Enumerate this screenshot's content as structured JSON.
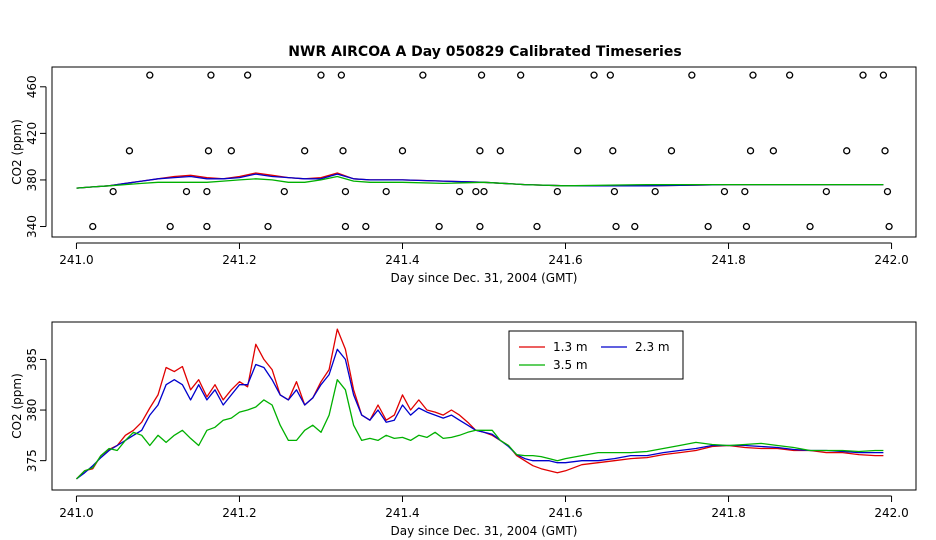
{
  "figure_title": "NWR AIRCOA A  Day 050829  Calibrated Timeseries",
  "chart_data": [
    {
      "type": "line",
      "title": "NWR AIRCOA A  Day 050829  Calibrated Timeseries",
      "xlabel": "Day since Dec. 31, 2004 (GMT)",
      "ylabel": "CO2 (ppm)",
      "xlim": [
        240.97,
        242.03
      ],
      "ylim": [
        331,
        477
      ],
      "xticks": [
        "241.0",
        "241.2",
        "241.4",
        "241.6",
        "241.8",
        "242.0"
      ],
      "xtick_values": [
        241.0,
        241.2,
        241.4,
        241.6,
        241.8,
        242.0
      ],
      "yticks": [
        "340",
        "380",
        "420",
        "460"
      ],
      "ytick_values": [
        340,
        380,
        420,
        460
      ],
      "grid": false,
      "colors": {
        "s13": "#e00000",
        "s23": "#0000cc",
        "s35": "#00b000",
        "points": "#000000"
      },
      "series": [
        {
          "key": "s13",
          "x": [
            241.0,
            241.02,
            241.04,
            241.06,
            241.08,
            241.1,
            241.12,
            241.14,
            241.16,
            241.18,
            241.2,
            241.22,
            241.24,
            241.26,
            241.28,
            241.3,
            241.32,
            241.34,
            241.36,
            241.4,
            241.45,
            241.5,
            241.55,
            241.6,
            241.7,
            241.8,
            241.9,
            241.99
          ],
          "y": [
            373,
            374,
            375,
            377,
            379,
            381,
            383,
            384,
            382,
            381,
            383,
            386,
            384,
            382,
            381,
            382,
            386,
            381,
            380,
            380,
            379,
            378,
            376,
            375,
            375,
            376,
            376,
            376
          ]
        },
        {
          "key": "s23",
          "x": [
            241.0,
            241.02,
            241.04,
            241.06,
            241.08,
            241.1,
            241.12,
            241.14,
            241.16,
            241.18,
            241.2,
            241.22,
            241.24,
            241.26,
            241.28,
            241.3,
            241.32,
            241.34,
            241.36,
            241.4,
            241.45,
            241.5,
            241.55,
            241.6,
            241.7,
            241.8,
            241.9,
            241.99
          ],
          "y": [
            373,
            374,
            375,
            377,
            379,
            381,
            382,
            383,
            381,
            381,
            382,
            385,
            383,
            382,
            381,
            381,
            385,
            381,
            380,
            380,
            379,
            378,
            376,
            375,
            375,
            376,
            376,
            376
          ]
        },
        {
          "key": "s35",
          "x": [
            241.0,
            241.02,
            241.04,
            241.06,
            241.08,
            241.1,
            241.12,
            241.14,
            241.16,
            241.18,
            241.2,
            241.22,
            241.24,
            241.26,
            241.28,
            241.3,
            241.32,
            241.34,
            241.36,
            241.4,
            241.45,
            241.5,
            241.55,
            241.6,
            241.7,
            241.8,
            241.9,
            241.99
          ],
          "y": [
            373,
            374,
            375,
            376,
            377,
            378,
            378,
            378,
            378,
            379,
            380,
            381,
            380,
            378,
            378,
            380,
            383,
            379,
            378,
            378,
            377,
            378,
            376,
            375,
            376,
            376,
            376,
            376
          ]
        }
      ],
      "points": {
        "x": [
          241.02,
          241.045,
          241.065,
          241.09,
          241.115,
          241.135,
          241.16,
          241.16,
          241.162,
          241.165,
          241.19,
          241.21,
          241.235,
          241.255,
          241.28,
          241.3,
          241.325,
          241.327,
          241.33,
          241.33,
          241.355,
          241.38,
          241.4,
          241.425,
          241.445,
          241.47,
          241.49,
          241.495,
          241.495,
          241.497,
          241.5,
          241.52,
          241.545,
          241.565,
          241.59,
          241.615,
          241.635,
          241.655,
          241.658,
          241.66,
          241.662,
          241.685,
          241.71,
          241.73,
          241.755,
          241.775,
          241.795,
          241.82,
          241.822,
          241.827,
          241.83,
          241.855,
          241.875,
          241.9,
          241.92,
          241.945,
          241.965,
          241.99,
          241.992,
          241.995,
          241.997
        ],
        "y": [
          340,
          370,
          405,
          470,
          340,
          370,
          340,
          370,
          405,
          470,
          405,
          470,
          340,
          370,
          405,
          470,
          470,
          405,
          370,
          340,
          340,
          370,
          405,
          470,
          340,
          370,
          370,
          340,
          405,
          470,
          370,
          405,
          470,
          340,
          370,
          405,
          470,
          470,
          405,
          370,
          340,
          340,
          370,
          405,
          470,
          340,
          370,
          370,
          340,
          405,
          470,
          405,
          470,
          340,
          370,
          405,
          470,
          470,
          405,
          370,
          340
        ]
      }
    },
    {
      "type": "line",
      "title": "",
      "xlabel": "Day since Dec. 31, 2004 (GMT)",
      "ylabel": "CO2 (ppm)",
      "xlim": [
        240.97,
        242.03
      ],
      "ylim": [
        372.1,
        388.7
      ],
      "xticks": [
        "241.0",
        "241.2",
        "241.4",
        "241.6",
        "241.8",
        "242.0"
      ],
      "xtick_values": [
        241.0,
        241.2,
        241.4,
        241.6,
        241.8,
        242.0
      ],
      "yticks": [
        "375",
        "380",
        "385"
      ],
      "ytick_values": [
        375,
        380,
        385
      ],
      "grid": false,
      "legend": {
        "placement": "top-center",
        "entries": [
          {
            "key": "s13",
            "label": "1.3 m"
          },
          {
            "key": "s23",
            "label": "2.3 m"
          },
          {
            "key": "s35",
            "label": "3.5 m"
          }
        ]
      },
      "colors": {
        "s13": "#e00000",
        "s23": "#0000cc",
        "s35": "#00b000"
      },
      "series": [
        {
          "key": "s13",
          "name": "1.3 m",
          "x": [
            241.0,
            241.01,
            241.02,
            241.03,
            241.04,
            241.05,
            241.06,
            241.07,
            241.08,
            241.09,
            241.1,
            241.11,
            241.12,
            241.13,
            241.14,
            241.15,
            241.16,
            241.17,
            241.18,
            241.19,
            241.2,
            241.21,
            241.22,
            241.23,
            241.24,
            241.25,
            241.26,
            241.27,
            241.28,
            241.29,
            241.3,
            241.31,
            241.32,
            241.33,
            241.34,
            241.35,
            241.36,
            241.37,
            241.38,
            241.39,
            241.4,
            241.41,
            241.42,
            241.43,
            241.44,
            241.45,
            241.46,
            241.47,
            241.48,
            241.49,
            241.5,
            241.51,
            241.52,
            241.53,
            241.54,
            241.55,
            241.56,
            241.57,
            241.58,
            241.59,
            241.6,
            241.62,
            241.64,
            241.66,
            241.68,
            241.7,
            241.72,
            241.74,
            241.76,
            241.78,
            241.8,
            241.82,
            241.84,
            241.86,
            241.88,
            241.9,
            241.92,
            241.94,
            241.96,
            241.98,
            241.99
          ],
          "y": [
            373.2,
            374.0,
            374.2,
            375.5,
            376.1,
            376.5,
            377.5,
            378.0,
            378.8,
            380.2,
            381.5,
            384.2,
            383.8,
            384.3,
            382.0,
            383.0,
            381.3,
            382.5,
            381.0,
            382.0,
            382.8,
            382.3,
            386.5,
            385.0,
            384.0,
            381.5,
            381.0,
            382.8,
            380.5,
            381.2,
            382.8,
            384.0,
            388.0,
            386.0,
            382.0,
            379.5,
            379.0,
            380.5,
            379.0,
            379.5,
            381.5,
            380.0,
            381.0,
            380.0,
            379.8,
            379.5,
            380.0,
            379.5,
            378.8,
            378.0,
            377.8,
            377.5,
            377.0,
            376.5,
            375.5,
            375.0,
            374.5,
            374.2,
            374.0,
            373.8,
            374.0,
            374.6,
            374.8,
            375.0,
            375.2,
            375.3,
            375.6,
            375.8,
            376.0,
            376.4,
            376.5,
            376.3,
            376.2,
            376.2,
            376.0,
            376.0,
            375.8,
            375.8,
            375.6,
            375.5,
            375.5
          ]
        },
        {
          "key": "s23",
          "name": "2.3 m",
          "x": [
            241.0,
            241.01,
            241.02,
            241.03,
            241.04,
            241.05,
            241.06,
            241.07,
            241.08,
            241.09,
            241.1,
            241.11,
            241.12,
            241.13,
            241.14,
            241.15,
            241.16,
            241.17,
            241.18,
            241.19,
            241.2,
            241.21,
            241.22,
            241.23,
            241.24,
            241.25,
            241.26,
            241.27,
            241.28,
            241.29,
            241.3,
            241.31,
            241.32,
            241.33,
            241.34,
            241.35,
            241.36,
            241.37,
            241.38,
            241.39,
            241.4,
            241.41,
            241.42,
            241.43,
            241.44,
            241.45,
            241.46,
            241.47,
            241.48,
            241.49,
            241.5,
            241.51,
            241.52,
            241.53,
            241.54,
            241.55,
            241.56,
            241.57,
            241.58,
            241.59,
            241.6,
            241.62,
            241.64,
            241.66,
            241.68,
            241.7,
            241.72,
            241.74,
            241.76,
            241.78,
            241.8,
            241.82,
            241.84,
            241.86,
            241.88,
            241.9,
            241.92,
            241.94,
            241.96,
            241.98,
            241.99
          ],
          "y": [
            373.2,
            373.8,
            374.5,
            375.3,
            376.0,
            376.5,
            377.0,
            377.5,
            378.0,
            379.5,
            380.5,
            382.5,
            383.0,
            382.5,
            381.0,
            382.5,
            381.0,
            382.0,
            380.5,
            381.5,
            382.5,
            382.5,
            384.5,
            384.2,
            383.0,
            381.5,
            381.0,
            382.0,
            380.5,
            381.2,
            382.5,
            383.5,
            386.0,
            385.0,
            381.5,
            379.5,
            379.0,
            380.0,
            378.8,
            379.0,
            380.5,
            379.5,
            380.2,
            379.8,
            379.5,
            379.2,
            379.5,
            379.0,
            378.5,
            378.0,
            377.8,
            377.6,
            377.0,
            376.4,
            375.6,
            375.2,
            375.0,
            375.0,
            375.0,
            374.8,
            374.8,
            375.0,
            375.0,
            375.2,
            375.5,
            375.5,
            375.8,
            376.0,
            376.2,
            376.5,
            376.5,
            376.5,
            376.4,
            376.3,
            376.1,
            376.0,
            376.0,
            375.9,
            375.8,
            375.8,
            375.8
          ]
        },
        {
          "key": "s35",
          "name": "3.5 m",
          "x": [
            241.0,
            241.01,
            241.02,
            241.03,
            241.04,
            241.05,
            241.06,
            241.07,
            241.08,
            241.09,
            241.1,
            241.11,
            241.12,
            241.13,
            241.14,
            241.15,
            241.16,
            241.17,
            241.18,
            241.19,
            241.2,
            241.21,
            241.22,
            241.23,
            241.24,
            241.25,
            241.26,
            241.27,
            241.28,
            241.29,
            241.3,
            241.31,
            241.32,
            241.33,
            241.34,
            241.35,
            241.36,
            241.37,
            241.38,
            241.39,
            241.4,
            241.41,
            241.42,
            241.43,
            241.44,
            241.45,
            241.46,
            241.47,
            241.48,
            241.49,
            241.5,
            241.51,
            241.52,
            241.53,
            241.54,
            241.55,
            241.56,
            241.57,
            241.58,
            241.59,
            241.6,
            241.62,
            241.64,
            241.66,
            241.68,
            241.7,
            241.72,
            241.74,
            241.76,
            241.78,
            241.8,
            241.82,
            241.84,
            241.86,
            241.88,
            241.9,
            241.92,
            241.94,
            241.96,
            241.98,
            241.99
          ],
          "y": [
            373.2,
            374.0,
            374.3,
            375.5,
            376.2,
            376.0,
            377.0,
            377.8,
            377.5,
            376.5,
            377.5,
            376.8,
            377.5,
            378.0,
            377.2,
            376.5,
            378.0,
            378.3,
            379.0,
            379.2,
            379.8,
            380.0,
            380.3,
            381.0,
            380.5,
            378.5,
            377.0,
            377.0,
            378.0,
            378.5,
            377.8,
            379.5,
            383.0,
            382.0,
            378.5,
            377.0,
            377.2,
            377.0,
            377.5,
            377.2,
            377.3,
            377.0,
            377.5,
            377.3,
            377.8,
            377.2,
            377.3,
            377.5,
            377.8,
            378.0,
            378.0,
            378.0,
            377.0,
            376.5,
            375.6,
            375.5,
            375.5,
            375.4,
            375.2,
            375.0,
            375.2,
            375.5,
            375.8,
            375.8,
            375.8,
            375.9,
            376.2,
            376.5,
            376.8,
            376.6,
            376.5,
            376.6,
            376.7,
            376.5,
            376.3,
            376.0,
            376.0,
            376.0,
            375.9,
            376.0,
            376.0
          ]
        }
      ]
    }
  ]
}
